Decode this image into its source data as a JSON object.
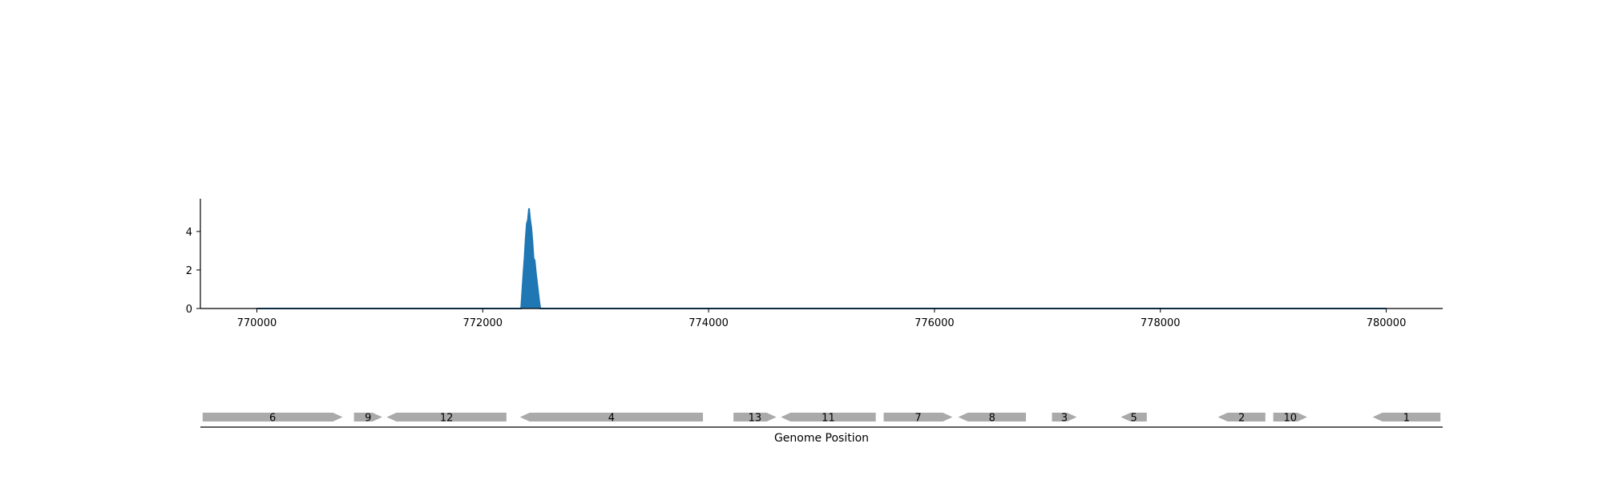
{
  "chart_data": {
    "type": "area",
    "title": "",
    "xlabel": "Genome Position",
    "ylabel": "",
    "xlim": [
      769500,
      780500
    ],
    "ylim": [
      0,
      5.7
    ],
    "x_ticks": [
      770000,
      772000,
      774000,
      776000,
      778000,
      780000
    ],
    "y_ticks": [
      0,
      2,
      4
    ],
    "grid": false,
    "series": [
      {
        "color": "#1f77b4",
        "x": [
          770000,
          772340,
          772350,
          772360,
          772370,
          772380,
          772390,
          772400,
          772410,
          772420,
          772430,
          772440,
          772450,
          772460,
          772470,
          772480,
          772490,
          772500,
          772510,
          780000
        ],
        "y": [
          0,
          0,
          0.9,
          1.8,
          2.6,
          3.6,
          4.4,
          4.6,
          5.2,
          4.6,
          4.2,
          3.5,
          2.6,
          2.5,
          1.9,
          1.4,
          0.9,
          0.4,
          0,
          0
        ]
      }
    ],
    "genes": [
      {
        "label": "6",
        "start": 769520,
        "end": 770760,
        "strand": "+"
      },
      {
        "label": "9",
        "start": 770860,
        "end": 771110,
        "strand": "+"
      },
      {
        "label": "12",
        "start": 771150,
        "end": 772210,
        "strand": "-"
      },
      {
        "label": "4",
        "start": 772330,
        "end": 773950,
        "strand": "-"
      },
      {
        "label": "13",
        "start": 774220,
        "end": 774600,
        "strand": "+"
      },
      {
        "label": "11",
        "start": 774640,
        "end": 775480,
        "strand": "-"
      },
      {
        "label": "7",
        "start": 775550,
        "end": 776160,
        "strand": "+"
      },
      {
        "label": "8",
        "start": 776210,
        "end": 776810,
        "strand": "-"
      },
      {
        "label": "3",
        "start": 777040,
        "end": 777260,
        "strand": "+"
      },
      {
        "label": "5",
        "start": 777650,
        "end": 777880,
        "strand": "-"
      },
      {
        "label": "2",
        "start": 778510,
        "end": 778930,
        "strand": "-"
      },
      {
        "label": "10",
        "start": 779000,
        "end": 779300,
        "strand": "+"
      },
      {
        "label": "1",
        "start": 779880,
        "end": 780480,
        "strand": "-"
      }
    ],
    "gene_color": "#aaaaaa"
  }
}
